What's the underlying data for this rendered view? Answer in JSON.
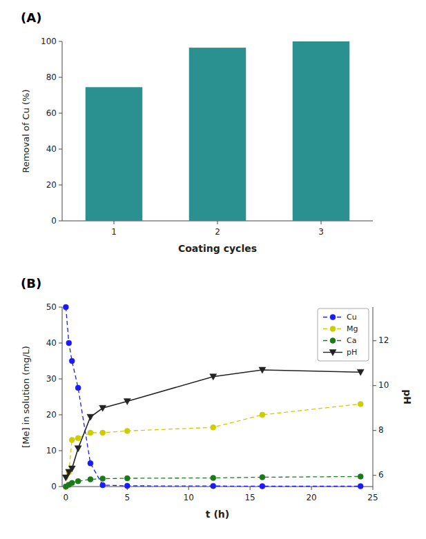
{
  "chart_data": [
    {
      "type": "bar",
      "title": "(A)",
      "categories": [
        "1",
        "2",
        "3"
      ],
      "values": [
        74.5,
        96.5,
        100.0
      ],
      "color": "#2a9090",
      "xlabel": "Coating cycles",
      "ylabel": "Removal of Cu (%)",
      "ylim": [
        0,
        100
      ],
      "yticks": [
        0,
        20,
        40,
        60,
        80,
        100
      ]
    },
    {
      "type": "line",
      "title": "(B)",
      "xlabel": "t (h)",
      "ylabel": "[Me] in solution (mg/L)",
      "y2label": "pH",
      "x": [
        0,
        0.25,
        0.5,
        1,
        2,
        3,
        5,
        12,
        16,
        24
      ],
      "xlim": [
        -0.3,
        25
      ],
      "xticks": [
        0,
        5,
        10,
        15,
        20,
        25
      ],
      "ylim": [
        0,
        50
      ],
      "yticks": [
        0,
        10,
        20,
        30,
        40,
        50
      ],
      "y2lim": [
        5.5,
        13.5
      ],
      "y2ticks": [
        6,
        8,
        10,
        12
      ],
      "legend": "upper right",
      "series": [
        {
          "name": "Cu",
          "color": "#1a1aff",
          "marker": "o",
          "line_style": "dashed",
          "values": [
            50,
            40,
            35,
            27.5,
            6.5,
            0.4,
            0.2,
            0.15,
            0.1,
            0.1
          ]
        },
        {
          "name": "Mg",
          "color": "#cccc00",
          "marker": "o",
          "line_style": "dashed",
          "values": [
            0,
            4.0,
            13.0,
            13.5,
            15.0,
            15.0,
            15.5,
            16.5,
            20.0,
            23.0
          ]
        },
        {
          "name": "Ca",
          "color": "#1a7a1a",
          "marker": "o",
          "line_style": "dashed",
          "values": [
            0,
            0.5,
            1.0,
            1.5,
            2.0,
            2.2,
            2.3,
            2.4,
            2.6,
            2.8
          ]
        },
        {
          "name": "pH",
          "color": "#222222",
          "marker": "v",
          "line_style": "solid",
          "axis": "y2",
          "values": [
            5.9,
            6.15,
            6.3,
            7.2,
            8.6,
            9.0,
            9.3,
            10.4,
            10.7,
            10.6
          ]
        }
      ]
    }
  ]
}
